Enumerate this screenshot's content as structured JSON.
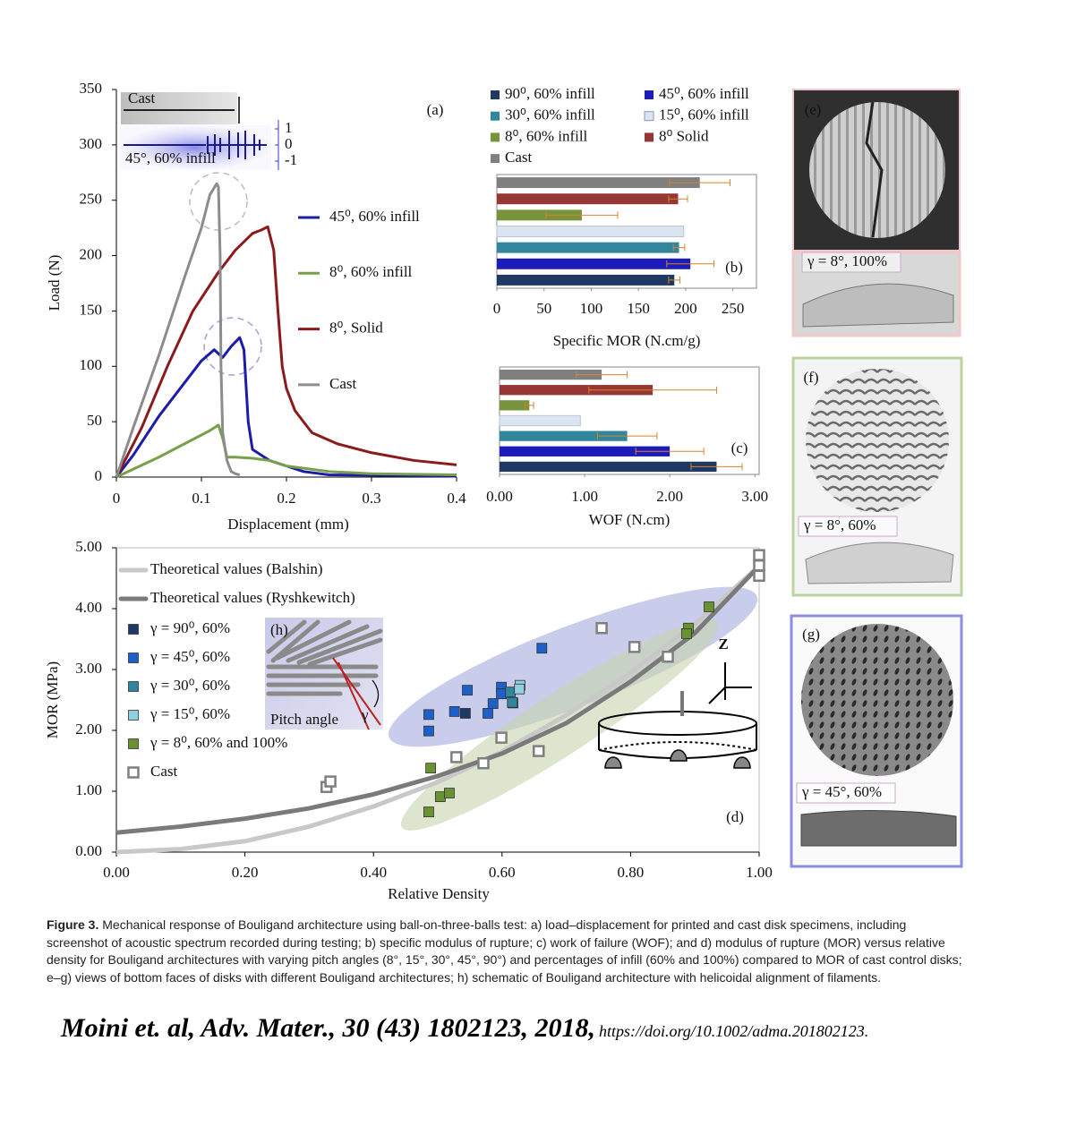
{
  "chart_data": [
    {
      "type": "line",
      "panel_label": "(a)",
      "x_label": "Displacement (mm)",
      "y_label": "Load (N)",
      "xlim": [
        0,
        0.4
      ],
      "ylim": [
        0,
        350
      ],
      "xticks": [
        0,
        0.1,
        0.2,
        0.3,
        0.4
      ],
      "yticks": [
        0,
        50,
        100,
        150,
        200,
        250,
        300,
        350
      ],
      "series": [
        {
          "name": "45⁰, 60% infill",
          "color": "#1c1ca8",
          "x": [
            0,
            0.02,
            0.05,
            0.08,
            0.1,
            0.115,
            0.125,
            0.135,
            0.145,
            0.15,
            0.155,
            0.16,
            0.18,
            0.2,
            0.22,
            0.25,
            0.4
          ],
          "values": [
            0,
            20,
            55,
            85,
            105,
            115,
            108,
            118,
            126,
            115,
            50,
            25,
            15,
            10,
            5,
            2,
            1
          ]
        },
        {
          "name": "8⁰, 60% infill",
          "color": "#77a04a",
          "x": [
            0,
            0.05,
            0.08,
            0.1,
            0.11,
            0.12,
            0.125,
            0.13,
            0.14,
            0.16,
            0.18,
            0.2,
            0.25,
            0.3,
            0.4
          ],
          "values": [
            0,
            18,
            30,
            38,
            42,
            47,
            35,
            18,
            18,
            17,
            15,
            10,
            5,
            3,
            2
          ]
        },
        {
          "name": "8⁰, Solid",
          "color": "#8b1a1a",
          "x": [
            0,
            0.03,
            0.06,
            0.09,
            0.12,
            0.14,
            0.16,
            0.17,
            0.178,
            0.185,
            0.19,
            0.195,
            0.2,
            0.21,
            0.23,
            0.26,
            0.3,
            0.35,
            0.4
          ],
          "values": [
            0,
            45,
            100,
            150,
            185,
            205,
            220,
            223,
            226,
            205,
            150,
            100,
            80,
            60,
            40,
            30,
            22,
            15,
            11
          ]
        },
        {
          "name": "Cast",
          "color": "#8c8c8c",
          "x": [
            0,
            0.02,
            0.05,
            0.08,
            0.1,
            0.11,
            0.118,
            0.12,
            0.122,
            0.123,
            0.125,
            0.13,
            0.135,
            0.14,
            0.145
          ],
          "values": [
            0,
            45,
            110,
            180,
            225,
            255,
            265,
            262,
            200,
            100,
            40,
            15,
            5,
            3,
            2
          ]
        }
      ],
      "inset": {
        "labels": [
          "Cast",
          "45°, 60% infill"
        ],
        "yticks": [
          1,
          0,
          -1
        ]
      }
    },
    {
      "type": "bar",
      "orientation": "horizontal",
      "panel_label": "(b)",
      "x_label": "Specific MOR (N.cm/g)",
      "xlim": [
        0,
        275
      ],
      "xticks": [
        0,
        50,
        100,
        150,
        200,
        250
      ],
      "categories": [
        "90⁰, 60% infill",
        "45⁰, 60% infill",
        "30⁰, 60% infill",
        "15⁰, 60% infill",
        "8⁰, 60% infill",
        "8⁰ Solid",
        "Cast"
      ],
      "colors": [
        "#1f3864",
        "#1c1cb8",
        "#31859c",
        "#dbe5f1",
        "#77933c",
        "#953735",
        "#7f7f7f"
      ],
      "values": [
        188,
        205,
        193,
        198,
        90,
        192,
        215
      ],
      "errors": [
        6,
        25,
        6,
        null,
        38,
        10,
        32
      ],
      "error_color": "#d9822b"
    },
    {
      "type": "bar",
      "orientation": "horizontal",
      "panel_label": "(c)",
      "x_label": "WOF (N.cm)",
      "xlim": [
        0,
        3.05
      ],
      "xticks": [
        {
          "value": 0,
          "label": "0.00"
        },
        {
          "value": 1,
          "label": "1.00"
        },
        {
          "value": 2,
          "label": "2.00"
        },
        {
          "value": 3,
          "label": "3.00"
        }
      ],
      "colors": [
        "#1f3864",
        "#1c1cb8",
        "#31859c",
        "#dbe5f1",
        "#77933c",
        "#953735",
        "#7f7f7f"
      ],
      "values": [
        2.55,
        2.0,
        1.5,
        0.95,
        0.35,
        1.8,
        1.2
      ],
      "errors": [
        0.3,
        0.4,
        0.35,
        null,
        0.05,
        0.75,
        0.3
      ],
      "error_color": "#d9822b"
    },
    {
      "type": "scatter",
      "panel_label": "(d)",
      "x_label": "Relative Density",
      "y_label": "MOR (MPa)",
      "xlim": [
        0,
        1
      ],
      "ylim": [
        0,
        5
      ],
      "xticks": [
        {
          "value": 0,
          "label": "0.00"
        },
        {
          "value": 0.2,
          "label": "0.20"
        },
        {
          "value": 0.4,
          "label": "0.40"
        },
        {
          "value": 0.6,
          "label": "0.60"
        },
        {
          "value": 0.8,
          "label": "0.80"
        },
        {
          "value": 1,
          "label": "1.00"
        }
      ],
      "yticks": [
        {
          "value": 0,
          "label": "0.00"
        },
        {
          "value": 1,
          "label": "1.00"
        },
        {
          "value": 2,
          "label": "2.00"
        },
        {
          "value": 3,
          "label": "3.00"
        },
        {
          "value": 4,
          "label": "4.00"
        },
        {
          "value": 5,
          "label": "5.00"
        }
      ],
      "lines": [
        {
          "name": "Theoretical values (Balshin)",
          "color": "#c8c8c8",
          "x": [
            0,
            0.1,
            0.2,
            0.3,
            0.4,
            0.5,
            0.6,
            0.7,
            0.8,
            0.9,
            1
          ],
          "values": [
            0,
            0.05,
            0.18,
            0.42,
            0.75,
            1.15,
            1.65,
            2.25,
            2.95,
            3.75,
            4.7
          ]
        },
        {
          "name": "Theoretical values (Ryshkewitch)",
          "color": "#7a7a7a",
          "x": [
            0,
            0.1,
            0.2,
            0.3,
            0.4,
            0.5,
            0.6,
            0.7,
            0.8,
            0.9,
            1
          ],
          "values": [
            0.32,
            0.42,
            0.55,
            0.72,
            0.95,
            1.25,
            1.62,
            2.12,
            2.8,
            3.6,
            4.7
          ]
        }
      ],
      "series": [
        {
          "name": "γ = 90⁰, 60%",
          "color": "#1f3864",
          "marker": "filled",
          "x": [
            0.543,
            0.617
          ],
          "values": [
            2.28,
            2.45
          ]
        },
        {
          "name": "γ = 45⁰, 60%",
          "color": "#1f5fc8",
          "marker": "filled",
          "x": [
            0.486,
            0.486,
            0.526,
            0.546,
            0.578,
            0.586,
            0.599,
            0.599,
            0.662
          ],
          "values": [
            2.26,
            1.99,
            2.31,
            2.66,
            2.28,
            2.44,
            2.71,
            2.6,
            3.35
          ]
        },
        {
          "name": "γ = 30⁰, 60%",
          "color": "#31859c",
          "marker": "filled",
          "x": [
            0.613,
            0.616
          ],
          "values": [
            2.63,
            2.46
          ]
        },
        {
          "name": "γ = 15⁰, 60%",
          "color": "#8fcfe0",
          "marker": "filled",
          "x": [
            0.628,
            0.627
          ],
          "values": [
            2.74,
            2.68
          ]
        },
        {
          "name": "γ = 8⁰, 60% and 100%",
          "color": "#6a9232",
          "marker": "filled",
          "x": [
            0.489,
            0.486,
            0.504,
            0.518,
            0.89,
            0.887,
            0.922
          ],
          "values": [
            1.38,
            0.66,
            0.91,
            0.97,
            3.68,
            3.59,
            4.03
          ]
        },
        {
          "name": "Cast",
          "color": "#7f7f7f",
          "marker": "hollow",
          "x": [
            0.327,
            0.333,
            0.529,
            0.571,
            0.599,
            0.657,
            0.755,
            0.806,
            0.858,
            1,
            1,
            1
          ],
          "values": [
            1.07,
            1.16,
            1.56,
            1.46,
            1.88,
            1.66,
            3.68,
            3.37,
            3.21,
            4.88,
            4.71,
            4.54
          ]
        }
      ],
      "annotations": {
        "inset_label": "(h)",
        "pitch_angle": "Pitch angle",
        "gamma": "γ",
        "z_axis": "Z"
      }
    }
  ],
  "photos": [
    {
      "label": "(e)",
      "caption": "γ = 8°, 100%"
    },
    {
      "label": "(f)",
      "caption": "γ = 8°, 60%"
    },
    {
      "label": "(g)",
      "caption": "γ = 45°, 60%"
    }
  ],
  "figure_caption": {
    "label": "Figure 3.",
    "text": "Mechanical response of Bouligand architecture using ball-on-three-balls test: a) load–displacement for printed and cast disk specimens, including screenshot of acoustic spectrum recorded during testing; b) specific modulus of rupture; c) work of failure (WOF); and d) modulus of rupture (MOR) versus relative density for Bouligand architectures with varying pitch angles (8°, 15°, 30°, 45°, 90°) and percentages of infill (60% and 100%) compared to MOR of cast control disks; e–g) views of bottom faces of disks with different Bouligand architectures; h) schematic of Bouligand architecture with helicoidal alignment of filaments."
  },
  "citation": {
    "text": "Moini et. al, Adv. Mater., 30 (43) 1802123, 2018,",
    "doi": "https://doi.org/10.1002/adma.201802123."
  }
}
